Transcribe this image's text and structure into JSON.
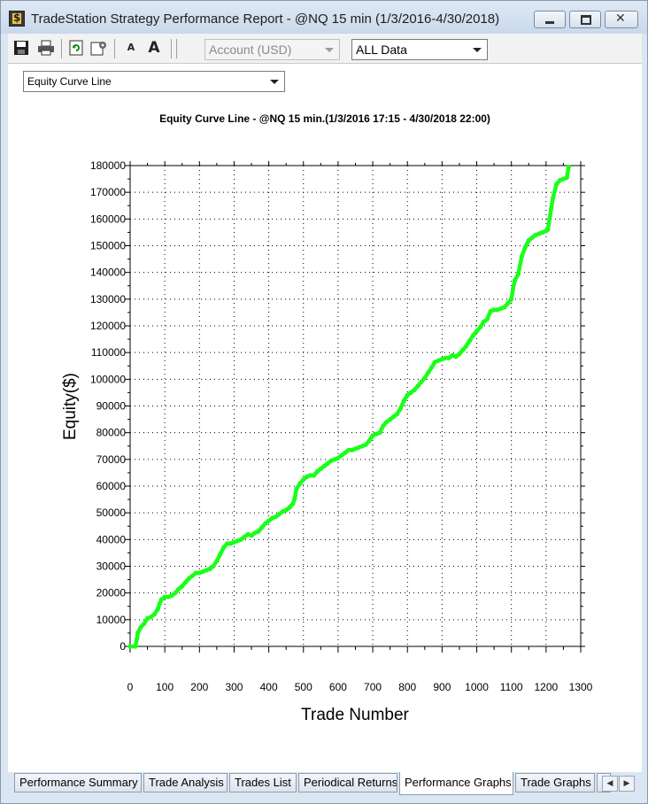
{
  "window": {
    "title": "TradeStation Strategy Performance Report - @NQ 15 min (1/3/2016-4/30/2018)"
  },
  "toolbar": {
    "icons": [
      "save-icon",
      "print-icon",
      "refresh-icon",
      "settings-icon",
      "decrease-font-icon",
      "increase-font-icon"
    ],
    "decrease_font_glyph": "A",
    "increase_font_glyph": "A",
    "account_select": "Account (USD)",
    "data_range_select": "ALL Data"
  },
  "graph_type_select": "Equity Curve Line",
  "tabs": [
    {
      "label": "Performance Summary",
      "active": false
    },
    {
      "label": "Trade Analysis",
      "active": false
    },
    {
      "label": "Trades List",
      "active": false
    },
    {
      "label": "Periodical Returns",
      "active": false
    },
    {
      "label": "Performance Graphs",
      "active": true
    },
    {
      "label": "Trade Graphs",
      "active": false
    },
    {
      "label": "S",
      "active": false
    }
  ],
  "colors": {
    "series_marker": "#19ff19",
    "series_line": "#000000"
  },
  "chart_data": {
    "type": "line",
    "title": "Equity Curve Line - @NQ 15 min.(1/3/2016 17:15 - 4/30/2018 22:00)",
    "xlabel": "Trade Number",
    "ylabel": "Equity($)",
    "xlim": [
      0,
      1300
    ],
    "ylim": [
      0,
      180000
    ],
    "x_ticks": [
      0,
      100,
      200,
      300,
      400,
      500,
      600,
      700,
      800,
      900,
      1000,
      1100,
      1200,
      1300
    ],
    "y_ticks": [
      0,
      10000,
      20000,
      30000,
      40000,
      50000,
      60000,
      70000,
      80000,
      90000,
      100000,
      110000,
      120000,
      130000,
      140000,
      150000,
      160000,
      170000,
      180000
    ],
    "grid": true,
    "legend": "none",
    "series": [
      {
        "x": [
          0,
          15,
          20,
          22,
          30,
          40,
          50,
          60,
          70,
          80,
          85,
          90,
          100,
          110,
          120,
          130,
          140,
          150,
          160,
          170,
          180,
          190,
          200,
          210,
          220,
          230,
          240,
          250,
          260,
          270,
          280,
          290,
          300,
          310,
          320,
          330,
          340,
          350,
          360,
          370,
          380,
          390,
          400,
          410,
          420,
          430,
          440,
          450,
          460,
          470,
          475,
          480,
          490,
          500,
          510,
          520,
          530,
          540,
          550,
          560,
          570,
          580,
          590,
          600,
          610,
          620,
          630,
          640,
          650,
          660,
          670,
          680,
          690,
          700,
          710,
          720,
          730,
          740,
          750,
          760,
          770,
          780,
          790,
          800,
          810,
          820,
          830,
          840,
          850,
          860,
          870,
          880,
          890,
          900,
          910,
          920,
          930,
          940,
          950,
          960,
          970,
          980,
          990,
          1000,
          1010,
          1020,
          1030,
          1040,
          1050,
          1060,
          1070,
          1080,
          1090,
          1100,
          1105,
          1110,
          1120,
          1130,
          1140,
          1150,
          1160,
          1170,
          1180,
          1190,
          1200,
          1205,
          1210,
          1215,
          1220,
          1230,
          1240,
          1250,
          1260,
          1265
        ],
        "y": [
          0,
          0,
          3000,
          5000,
          7000,
          8500,
          10500,
          11000,
          12000,
          14000,
          16000,
          17500,
          18500,
          18500,
          19000,
          20000,
          21500,
          22500,
          24000,
          25500,
          26500,
          27500,
          27500,
          28000,
          28500,
          29000,
          30000,
          32000,
          34500,
          37000,
          38500,
          38500,
          39000,
          39500,
          40000,
          41000,
          42000,
          41500,
          42500,
          43000,
          44500,
          46000,
          47000,
          48000,
          48500,
          49500,
          50500,
          51000,
          52000,
          53500,
          55500,
          59000,
          61000,
          62500,
          63500,
          64000,
          64000,
          65500,
          66500,
          67500,
          68500,
          69500,
          70000,
          70500,
          71500,
          72500,
          73500,
          73500,
          74000,
          74500,
          75000,
          75500,
          77000,
          79000,
          79500,
          80000,
          82500,
          84000,
          85000,
          86000,
          87000,
          89000,
          92000,
          94000,
          95000,
          96000,
          97500,
          99000,
          100500,
          102500,
          104500,
          106500,
          107000,
          107500,
          108000,
          108000,
          109000,
          108500,
          109500,
          111000,
          112500,
          114500,
          116500,
          118000,
          119500,
          121500,
          122500,
          125500,
          126000,
          126000,
          126500,
          127000,
          128500,
          130000,
          134000,
          137000,
          139500,
          146000,
          149500,
          152000,
          153000,
          154000,
          154500,
          155000,
          155500,
          156000,
          160000,
          164000,
          168000,
          173000,
          174500,
          175000,
          175500,
          179500
        ]
      }
    ]
  }
}
